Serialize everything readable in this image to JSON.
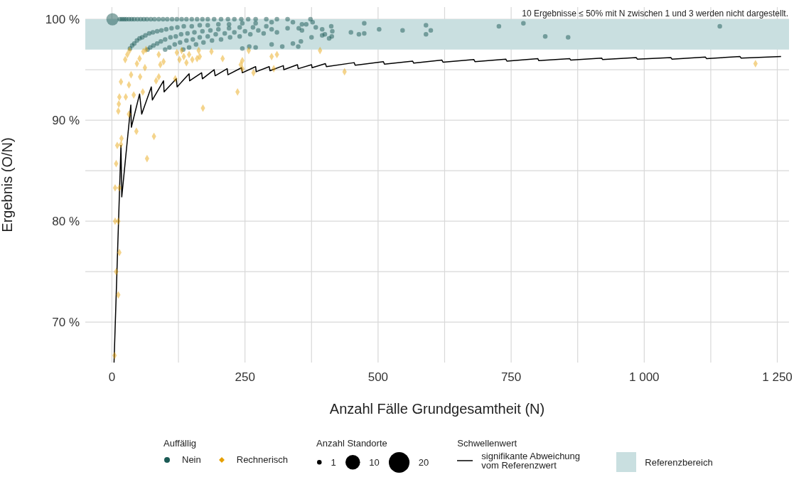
{
  "chart_data": {
    "type": "bubble",
    "xlabel": "Anzahl Fälle Grundgesamtheit (N)",
    "ylabel": "Ergebnis (O/N)",
    "legend_title": "Auffällig",
    "annotations": [
      "10 Ergebnisse ≤ 50% mit N zwischen 1 und 3 werden nicht dargestellt.",
      "Anzahl Standorte",
      "Schwellenwert"
    ],
    "xlim": [
      -50,
      1272
    ],
    "ylim": [
      66,
      101.2
    ],
    "xticks": [
      0,
      {
        "value": 125,
        "label": null
      },
      250,
      {
        "value": 375,
        "label": null
      },
      500,
      {
        "value": 625,
        "label": null
      },
      750,
      {
        "value": 875,
        "label": null
      },
      {
        "value": 1000,
        "label": "1 000"
      },
      {
        "value": 1125,
        "label": null
      },
      {
        "value": 1250,
        "label": "1 250"
      }
    ],
    "yticks": [
      {
        "value": 70,
        "label": "70 %"
      },
      {
        "value": 75,
        "label": null
      },
      {
        "value": 80,
        "label": "80 %"
      },
      {
        "value": 85,
        "label": null
      },
      {
        "value": 90,
        "label": "90 %"
      },
      {
        "value": 95,
        "label": null
      },
      {
        "value": 100,
        "label": "100 %"
      }
    ],
    "grid": true,
    "legend": "bottom",
    "size_legend": [
      1,
      10,
      20
    ],
    "bands": [
      {
        "axis": "y",
        "from": 97,
        "to": 100,
        "label": "Referenzbereich",
        "color": "#c9dfe0"
      }
    ],
    "series": [
      {
        "name": "Nein",
        "marker": "circle",
        "color": "#1b5a55",
        "x": [
          1,
          15,
          19,
          23,
          27,
          32,
          37,
          42,
          48,
          54,
          60,
          66,
          73,
          80,
          88,
          96,
          104,
          113,
          122,
          131,
          140,
          150,
          160,
          170,
          180,
          192,
          205,
          218,
          230,
          243,
          256,
          270,
          290,
          310,
          330,
          373,
          34,
          38,
          42,
          47,
          52,
          57,
          63,
          70,
          77,
          85,
          93,
          102,
          112,
          123,
          135,
          150,
          165,
          180,
          200,
          220,
          245,
          270,
          300,
          340,
          67,
          72,
          78,
          85,
          92,
          100,
          110,
          120,
          130,
          142,
          155,
          170,
          185,
          200,
          220,
          240,
          265,
          290,
          100,
          108,
          118,
          128,
          140,
          152,
          165,
          180,
          195,
          212,
          230,
          250,
          275,
          300,
          330,
          134,
          145,
          158,
          172,
          188,
          205,
          222,
          240,
          260,
          285,
          310,
          245,
          258,
          270,
          300,
          320,
          340,
          355,
          375,
          395,
          350,
          377,
          357,
          365,
          351,
          357,
          383,
          395,
          400,
          412,
          414,
          413,
          408,
          449,
          464,
          474,
          474,
          502,
          546,
          590,
          599,
          590,
          727,
          773,
          814,
          857,
          1142
        ],
        "values": [
          100,
          100,
          100,
          100,
          100,
          100,
          100,
          100,
          100,
          100,
          100,
          100,
          100,
          100,
          100,
          100,
          100,
          100,
          100,
          100,
          100,
          100,
          100,
          100,
          100,
          100,
          100,
          100,
          100,
          100,
          100,
          100,
          100,
          100,
          100,
          100,
          97.1,
          97.4,
          97.6,
          97.9,
          98.1,
          98.2,
          98.4,
          98.6,
          98.7,
          98.8,
          98.9,
          99.0,
          99.1,
          99.2,
          99.3,
          99.3,
          99.4,
          99.4,
          99.5,
          99.5,
          99.6,
          99.6,
          99.7,
          99.7,
          97.0,
          97.2,
          97.4,
          97.6,
          97.8,
          98.0,
          98.2,
          98.3,
          98.5,
          98.6,
          98.7,
          98.8,
          98.9,
          99.0,
          99.1,
          99.2,
          99.2,
          99.3,
          97.0,
          97.2,
          97.5,
          97.7,
          97.9,
          98.0,
          98.2,
          98.3,
          98.5,
          98.6,
          98.7,
          98.8,
          98.9,
          99.0,
          99.1,
          97.0,
          97.2,
          97.5,
          97.7,
          97.9,
          98.0,
          98.2,
          98.3,
          98.5,
          98.6,
          98.7,
          97.1,
          97.3,
          97.2,
          97.5,
          97.3,
          97.6,
          97.8,
          98.2,
          98.4,
          97.3,
          99.7,
          99.5,
          99.5,
          99.1,
          98.9,
          99.2,
          99.0,
          98.5,
          99.3,
          98.8,
          98.3,
          98.1,
          98.7,
          98.5,
          98.6,
          99.6,
          99.0,
          98.9,
          99.4,
          98.9,
          98.5,
          99.3,
          99.6,
          98.3,
          98.2,
          99.3
        ],
        "sizes": [
          7,
          1,
          1,
          1,
          1,
          1,
          1,
          1,
          1,
          1,
          1,
          1,
          1,
          1,
          1,
          1,
          1,
          1,
          1,
          1,
          1,
          1,
          1,
          1,
          1,
          1,
          1,
          1,
          1,
          1,
          1,
          1,
          1,
          1,
          1,
          1,
          1,
          1,
          1,
          1,
          1,
          1,
          1,
          1,
          1,
          1,
          1,
          1,
          1,
          1,
          1,
          1,
          1,
          1,
          1,
          1,
          1,
          1,
          1,
          1,
          1,
          1,
          1,
          1,
          1,
          1,
          1,
          1,
          1,
          1,
          1,
          1,
          1,
          1,
          1,
          1,
          1,
          1,
          1,
          1,
          1,
          1,
          1,
          1,
          1,
          1,
          1,
          1,
          1,
          1,
          1,
          1,
          1,
          1,
          1,
          1,
          1,
          1,
          1,
          1,
          1,
          1,
          1,
          1,
          1,
          1,
          1,
          1,
          1,
          1,
          1,
          1,
          1,
          1,
          1,
          1,
          1,
          1,
          1,
          1,
          1,
          1,
          1,
          1,
          1,
          1,
          1,
          1,
          1,
          1,
          1,
          1,
          1,
          1,
          1,
          1,
          1,
          1,
          1,
          1
        ]
      },
      {
        "name": "Rechnerisch",
        "marker": "diamond",
        "color": "#e69f00",
        "x": [
          33,
          29,
          25,
          52,
          47,
          64,
          59,
          88,
          97,
          91,
          62,
          36,
          53,
          17,
          32,
          88,
          83,
          119,
          58,
          41,
          26,
          14,
          13,
          12,
          32,
          171,
          236,
          122,
          131,
          145,
          163,
          127,
          135,
          140,
          151,
          160,
          165,
          187,
          208,
          245,
          242,
          245,
          257,
          266,
          300,
          310,
          304,
          391,
          437,
          1209,
          46,
          79,
          66,
          18,
          10,
          17,
          8,
          6,
          14,
          6,
          12,
          14,
          8,
          12,
          5
        ],
        "values": [
          96.9,
          96.5,
          96.0,
          96.1,
          95.6,
          97.0,
          96.8,
          96.5,
          95.8,
          95.5,
          95.2,
          94.5,
          94.3,
          93.8,
          93.5,
          94.3,
          93.9,
          94.1,
          92.8,
          92.5,
          92.3,
          92.3,
          91.6,
          90.9,
          90.6,
          91.2,
          92.8,
          96.7,
          96.9,
          96.5,
          96.9,
          96.0,
          96.3,
          95.7,
          96.0,
          96.1,
          96.3,
          96.8,
          96.1,
          95.9,
          95.5,
          95.1,
          96.9,
          94.7,
          96.3,
          96.5,
          95.1,
          96.9,
          94.8,
          95.6,
          88.9,
          88.4,
          86.2,
          88.2,
          87.5,
          87.6,
          85.7,
          83.3,
          83.3,
          80.0,
          80.0,
          76.9,
          75.0,
          72.7,
          66.7
        ],
        "sizes": [
          1,
          1,
          1,
          1,
          1,
          1,
          1,
          1,
          1,
          1,
          1,
          1,
          1,
          1,
          1,
          1,
          1,
          1,
          1,
          1,
          1,
          1,
          1,
          1,
          1,
          1,
          1,
          1,
          1,
          1,
          1,
          1,
          1,
          1,
          1,
          1,
          1,
          1,
          1,
          1,
          1,
          1,
          1,
          1,
          1,
          1,
          1,
          1,
          1,
          1,
          1,
          1,
          1,
          1,
          1,
          1,
          1,
          1,
          1,
          1,
          1,
          1,
          1,
          1,
          1
        ]
      },
      {
        "name": "signifikante Abweichung vom Referenzwert",
        "type": "line",
        "marker": "none",
        "line_style": "solid",
        "color": "#000000",
        "x": [
          4,
          17,
          18.5,
          35.5,
          36.5,
          52,
          56,
          74,
          76,
          97,
          98,
          121,
          122.5,
          145,
          146,
          168.5,
          170,
          192,
          194,
          216.5,
          218,
          243.5,
          245,
          270,
          271,
          295.5,
          297,
          322,
          323,
          348.5,
          350,
          375,
          376,
          401,
          403,
          455,
          457,
          510,
          512,
          565,
          567,
          620,
          622,
          680,
          682,
          740,
          742,
          800,
          802,
          860,
          862,
          920,
          922,
          985,
          987,
          1050,
          1052,
          1115,
          1117,
          1180,
          1182,
          1257
        ],
        "values": [
          66,
          87.5,
          82.4,
          91.5,
          89.3,
          92.6,
          90.6,
          93.3,
          92.0,
          93.9,
          92.8,
          94.1,
          93.3,
          94.6,
          93.9,
          94.7,
          94.1,
          95.0,
          94.4,
          95.1,
          94.5,
          95.2,
          94.7,
          95.3,
          94.8,
          95.3,
          94.9,
          95.4,
          95.0,
          95.5,
          95.1,
          95.5,
          95.2,
          95.6,
          95.3,
          95.7,
          95.45,
          95.8,
          95.55,
          95.85,
          95.65,
          95.95,
          95.75,
          96.0,
          95.8,
          96.05,
          95.85,
          96.1,
          95.9,
          96.1,
          95.95,
          96.15,
          96.0,
          96.2,
          96.05,
          96.2,
          96.05,
          96.25,
          96.1,
          96.3,
          96.15,
          96.3
        ]
      }
    ]
  }
}
